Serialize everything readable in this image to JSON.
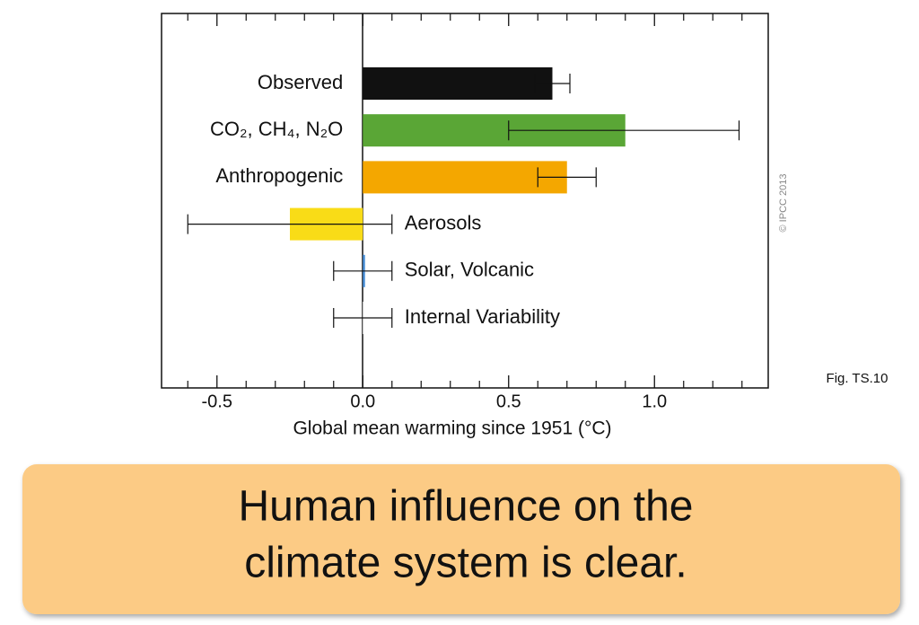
{
  "chart_data": {
    "type": "hbar-errorbar",
    "categories": [
      "Observed",
      "CO₂, CH₄, N₂O",
      "Anthropogenic",
      "Aerosols",
      "Solar, Volcanic",
      "Internal Variability"
    ],
    "values": [
      0.65,
      0.9,
      0.7,
      -0.25,
      0.0,
      0.0
    ],
    "error_low": [
      0.59,
      0.5,
      0.6,
      -0.6,
      -0.1,
      -0.1
    ],
    "error_high": [
      0.71,
      1.29,
      0.8,
      0.1,
      0.1,
      0.1
    ],
    "colors": [
      "#111111",
      "#5aa636",
      "#f4a700",
      "#f9dc17",
      "#4a90d9",
      "#ffffff"
    ],
    "xlim": [
      -0.69,
      1.39
    ],
    "xticks": [
      -0.5,
      {
        "value": 0,
        "label": "0.0"
      },
      0.5,
      {
        "value": 1,
        "label": "1.0"
      }
    ],
    "xminor_ticks": [
      -0.6,
      -0.4,
      -0.3,
      -0.2,
      -0.1,
      0.1,
      0.2,
      0.3,
      0.4,
      0.6,
      0.7,
      0.8,
      0.9,
      1.1,
      1.2,
      1.3
    ],
    "xlabel": "Global mean warming since 1951 (°C)",
    "credit": "© IPCC 2013",
    "figure_label": "Fig. TS.10"
  },
  "banner": {
    "lines": [
      "Human influence on the",
      "climate system is clear."
    ]
  }
}
